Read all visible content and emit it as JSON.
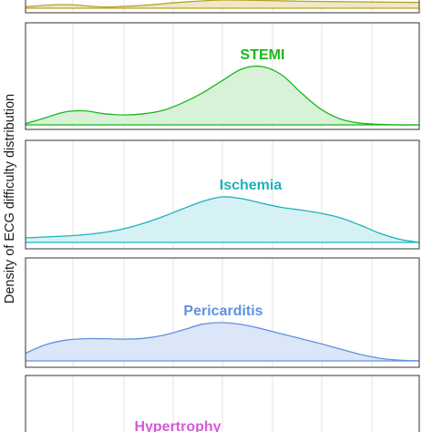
{
  "chart_data": {
    "type": "area",
    "title": "",
    "xlabel": "",
    "ylabel": "Density of ECG difficulty distribution",
    "x_range": [
      0,
      1
    ],
    "grid": true,
    "legend": "none",
    "panels": [
      {
        "name": "",
        "color": "#b8a32c",
        "fill": "#efe8c4",
        "x": [
          0.0,
          0.1,
          0.2,
          0.3,
          0.4,
          0.5,
          0.6,
          0.7,
          0.8,
          0.9,
          1.0
        ],
        "y": [
          0.18,
          0.45,
          0.15,
          0.35,
          0.75,
          1.0,
          0.95,
          0.85,
          0.8,
          0.75,
          0.7
        ]
      },
      {
        "name": "STEMI",
        "color": "#1cb51c",
        "fill": "#d8f2d8",
        "x": [
          0.0,
          0.05,
          0.1,
          0.15,
          0.2,
          0.25,
          0.3,
          0.35,
          0.4,
          0.45,
          0.5,
          0.55,
          0.6,
          0.65,
          0.7,
          0.75,
          0.8,
          0.85,
          0.9,
          0.95,
          1.0
        ],
        "y": [
          0.02,
          0.12,
          0.22,
          0.24,
          0.19,
          0.17,
          0.19,
          0.25,
          0.38,
          0.55,
          0.76,
          0.96,
          1.0,
          0.86,
          0.55,
          0.27,
          0.1,
          0.03,
          0.01,
          0.0,
          0.0
        ]
      },
      {
        "name": "Ischemia",
        "color": "#1bb3bd",
        "fill": "#d6f1f3",
        "x": [
          0.0,
          0.05,
          0.1,
          0.15,
          0.2,
          0.25,
          0.3,
          0.35,
          0.4,
          0.45,
          0.5,
          0.55,
          0.6,
          0.65,
          0.7,
          0.75,
          0.8,
          0.85,
          0.9,
          0.95,
          1.0
        ],
        "y": [
          0.1,
          0.12,
          0.14,
          0.17,
          0.22,
          0.3,
          0.42,
          0.57,
          0.74,
          0.9,
          1.0,
          0.96,
          0.86,
          0.77,
          0.71,
          0.64,
          0.54,
          0.38,
          0.2,
          0.07,
          0.0
        ]
      },
      {
        "name": "Pericarditis",
        "color": "#5f92e0",
        "fill": "#dbe6f8",
        "x": [
          0.0,
          0.05,
          0.1,
          0.15,
          0.2,
          0.25,
          0.3,
          0.35,
          0.4,
          0.45,
          0.5,
          0.55,
          0.6,
          0.65,
          0.7,
          0.75,
          0.8,
          0.85,
          0.9,
          0.95,
          1.0
        ],
        "y": [
          0.2,
          0.42,
          0.54,
          0.58,
          0.58,
          0.57,
          0.59,
          0.67,
          0.81,
          0.96,
          1.0,
          0.95,
          0.84,
          0.71,
          0.58,
          0.45,
          0.31,
          0.17,
          0.07,
          0.02,
          0.0
        ]
      },
      {
        "name": "Hypertrophy",
        "color": "#d45bd6",
        "fill": "#f6dcf6",
        "x": [],
        "y": []
      }
    ]
  }
}
